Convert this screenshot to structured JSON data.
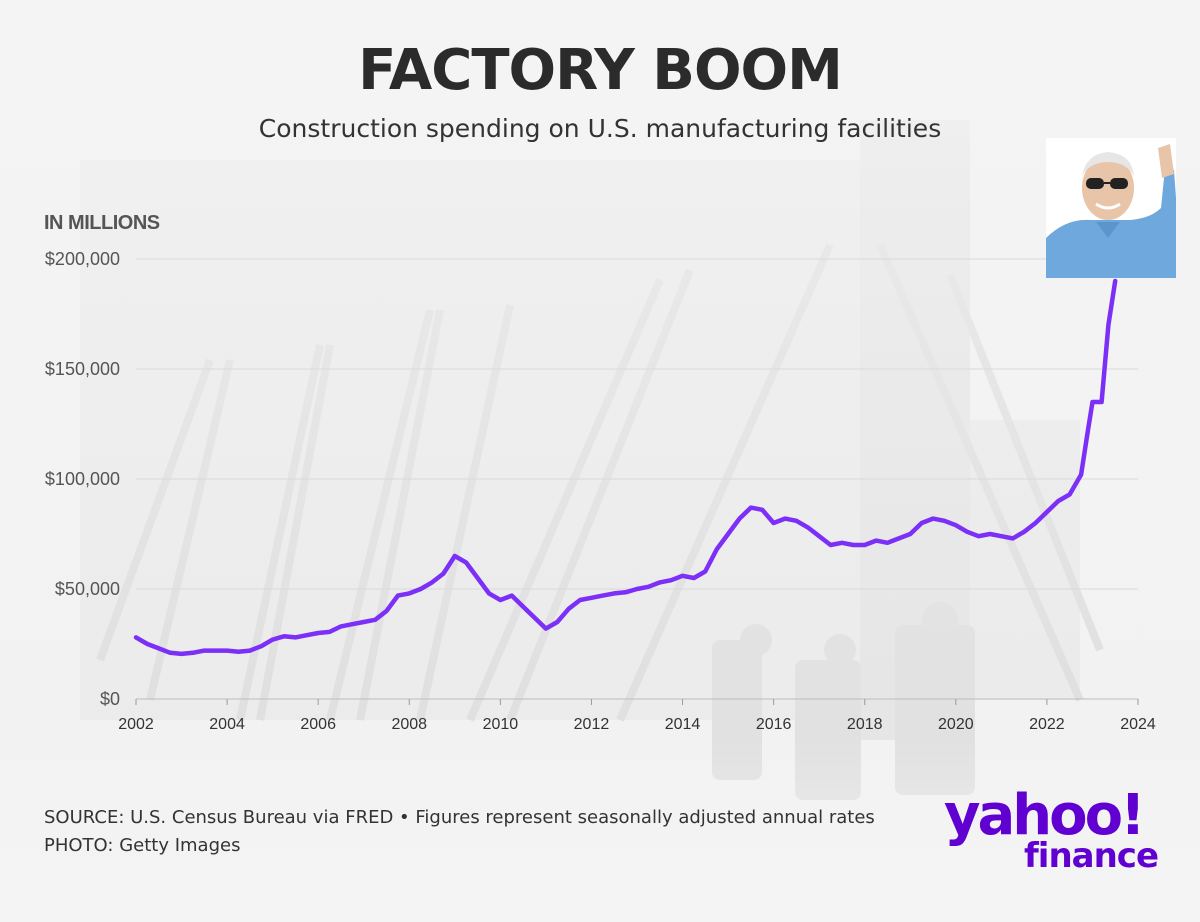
{
  "title": "FACTORY BOOM",
  "subtitle": "Construction spending on U.S. manufacturing facilities",
  "unit_label": "IN MILLIONS",
  "source_line": "SOURCE: U.S. Census Bureau via FRED • Figures represent seasonally adjusted annual rates",
  "photo_line": "PHOTO: Getty Images",
  "logo": {
    "word": "yahoo!",
    "sub": "finance"
  },
  "colors": {
    "line": "#7b2ff7",
    "logo": "#6001d2",
    "background": "#f4f4f4"
  },
  "chart_data": {
    "type": "line",
    "title": "FACTORY BOOM",
    "subtitle": "Construction spending on U.S. manufacturing facilities",
    "ylabel": "IN MILLIONS",
    "xlim": [
      2002,
      2024
    ],
    "ylim": [
      0,
      200000
    ],
    "x_ticks": [
      2002,
      2004,
      2006,
      2008,
      2010,
      2012,
      2014,
      2016,
      2018,
      2020,
      2022,
      2024
    ],
    "y_ticks": [
      0,
      50000,
      100000,
      150000,
      200000
    ],
    "y_tick_labels": [
      "$0",
      "$50,000",
      "$100,000",
      "$150,000",
      "$200,000"
    ],
    "grid": "horizontal",
    "series": [
      {
        "x": [
          2002.0,
          2002.25,
          2002.5,
          2002.75,
          2003.0,
          2003.25,
          2003.5,
          2003.75,
          2004.0,
          2004.25,
          2004.5,
          2004.75,
          2005.0,
          2005.25,
          2005.5,
          2005.75,
          2006.0,
          2006.25,
          2006.5,
          2006.75,
          2007.0,
          2007.25,
          2007.5,
          2007.75,
          2008.0,
          2008.25,
          2008.5,
          2008.75,
          2009.0,
          2009.25,
          2009.5,
          2009.75,
          2010.0,
          2010.25,
          2010.5,
          2010.75,
          2011.0,
          2011.25,
          2011.5,
          2011.75,
          2012.0,
          2012.25,
          2012.5,
          2012.75,
          2013.0,
          2013.25,
          2013.5,
          2013.75,
          2014.0,
          2014.25,
          2014.5,
          2014.75,
          2015.0,
          2015.25,
          2015.5,
          2015.75,
          2016.0,
          2016.25,
          2016.5,
          2016.75,
          2017.0,
          2017.25,
          2017.5,
          2017.75,
          2018.0,
          2018.25,
          2018.5,
          2018.75,
          2019.0,
          2019.25,
          2019.5,
          2019.75,
          2020.0,
          2020.25,
          2020.5,
          2020.75,
          2021.0,
          2021.25,
          2021.5,
          2021.75,
          2022.0,
          2022.25,
          2022.5,
          2022.75,
          2022.9,
          2023.0,
          2023.2,
          2023.35,
          2023.5
        ],
        "values": [
          28000,
          25000,
          23000,
          21000,
          20500,
          21000,
          22000,
          22000,
          22000,
          21500,
          22000,
          24000,
          27000,
          28500,
          28000,
          29000,
          30000,
          30500,
          33000,
          34000,
          35000,
          36000,
          40000,
          47000,
          48000,
          50000,
          53000,
          57000,
          65000,
          62000,
          55000,
          48000,
          45000,
          47000,
          42000,
          37000,
          32000,
          35000,
          41000,
          45000,
          46000,
          47000,
          48000,
          48500,
          50000,
          51000,
          53000,
          54000,
          56000,
          55000,
          58000,
          68000,
          75000,
          82000,
          87000,
          86000,
          80000,
          82000,
          81000,
          78000,
          74000,
          70000,
          71000,
          70000,
          70000,
          72000,
          71000,
          73000,
          75000,
          80000,
          82000,
          81000,
          79000,
          76000,
          74000,
          75000,
          74000,
          73000,
          76000,
          80000,
          85000,
          90000,
          93000,
          102000,
          122000,
          135000,
          135000,
          170000,
          190000
        ]
      }
    ]
  }
}
